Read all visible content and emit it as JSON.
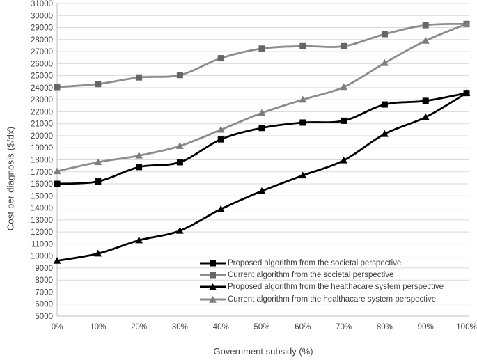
{
  "figure": {
    "y_axis_title": "Cost per diagnosis ($/dx)",
    "x_axis_title": "Government subsidy (%)"
  },
  "colors": {
    "black_series": "#000000",
    "gray_series": "#8c8c8c",
    "gray_square_marker": "#666666",
    "gray_triangle_marker": "#7d7d7d",
    "gridline": "#d9d9d9",
    "axis_line": "#bfbfbf",
    "text": "#404040"
  },
  "chart_data": {
    "type": "line",
    "line_style": "smoothed",
    "grid": "horizontal",
    "legend_position": "inside-bottom-center",
    "xlabel": "Government subsidy (%)",
    "ylabel": "Cost per diagnosis ($/dx)",
    "ylim": [
      5000,
      31000
    ],
    "y_tick_step": 1000,
    "categories": [
      "0%",
      "10%",
      "20%",
      "30%",
      "40%",
      "50%",
      "60%",
      "70%",
      "80%",
      "90%",
      "100%"
    ],
    "series": [
      {
        "name": "Proposed algorithm from the societal perspective",
        "marker": "square",
        "color": "#000000",
        "marker_color": "#000000",
        "values": [
          16000,
          16200,
          17400,
          17800,
          19700,
          20650,
          21100,
          21250,
          22600,
          22900,
          23550
        ]
      },
      {
        "name": "Current algorithm from the societal perspective",
        "marker": "square",
        "color": "#8c8c8c",
        "marker_color": "#666666",
        "values": [
          24050,
          24300,
          24850,
          25050,
          26450,
          27250,
          27450,
          27450,
          28450,
          29200,
          29300
        ]
      },
      {
        "name": "Proposed algorithm from the healthacare system perspective",
        "marker": "triangle",
        "color": "#000000",
        "marker_color": "#000000",
        "values": [
          9600,
          10200,
          11300,
          12100,
          13900,
          15400,
          16700,
          17950,
          20150,
          21550,
          23550
        ]
      },
      {
        "name": "Current algorithm from the healthacare system perspective",
        "marker": "triangle",
        "color": "#8c8c8c",
        "marker_color": "#7d7d7d",
        "values": [
          17050,
          17800,
          18350,
          19150,
          20500,
          21900,
          23000,
          24050,
          26050,
          27900,
          29300
        ]
      }
    ]
  }
}
